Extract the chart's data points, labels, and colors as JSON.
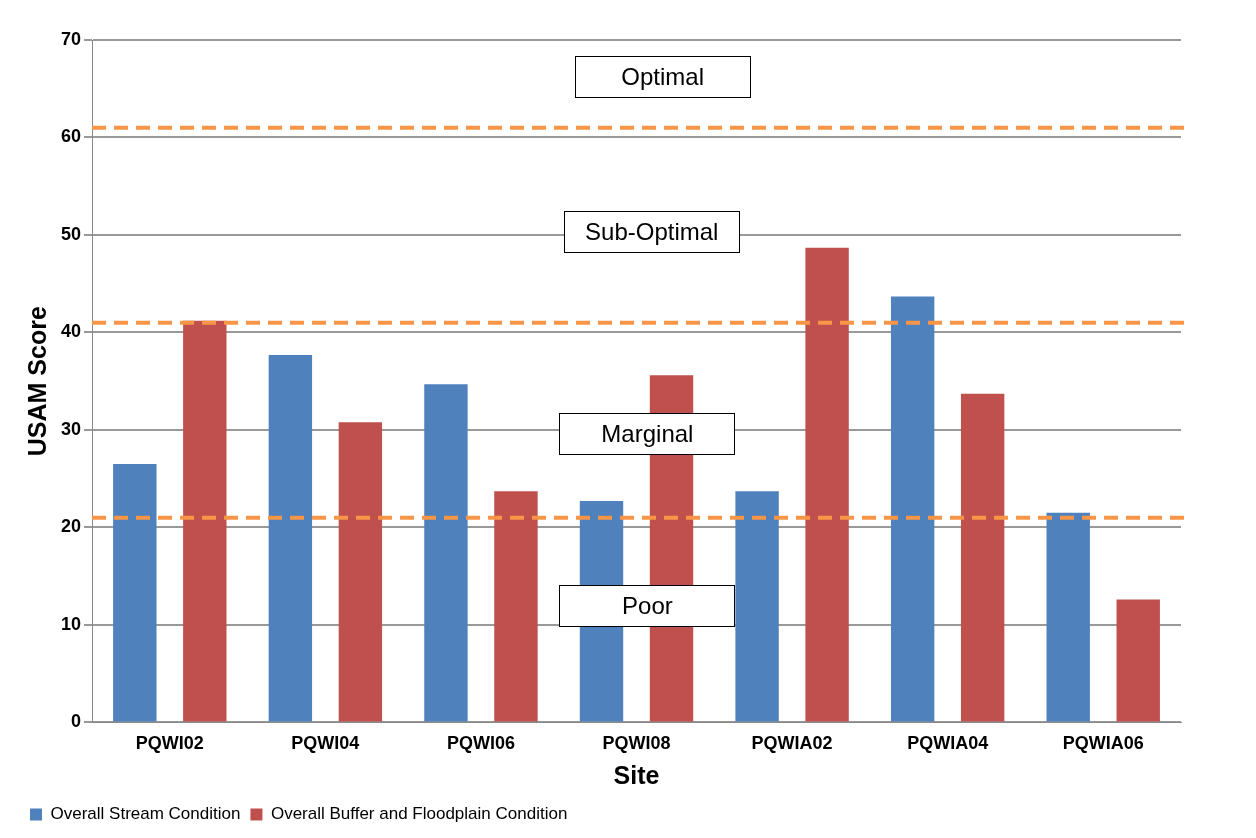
{
  "chart_data": {
    "type": "bar",
    "xlabel": "Site",
    "ylabel": "USAM Score",
    "categories": [
      "PQWI02",
      "PQWI04",
      "PQWI06",
      "PQWI08",
      "PQWIA02",
      "PQWIA04",
      "PQWIA06"
    ],
    "series": [
      {
        "name": "Overall Stream Condition",
        "color": "#4f81bd",
        "values": [
          26.5,
          37.7,
          34.7,
          22.7,
          23.7,
          43.7,
          21.5
        ]
      },
      {
        "name": "Overall Buffer and Floodplain Condition",
        "color": "#c0504d",
        "values": [
          41.2,
          30.8,
          23.7,
          35.6,
          48.7,
          33.7,
          12.6
        ]
      }
    ],
    "ylim": [
      0,
      70
    ],
    "yticks": [
      0,
      10,
      20,
      30,
      40,
      50,
      60,
      70
    ],
    "grid": "y",
    "legend": "bottom left",
    "ref_lines": [
      {
        "axis": "y",
        "value": 61,
        "color": "#f79646",
        "line_style": "dashed"
      },
      {
        "axis": "y",
        "value": 41,
        "color": "#f79646",
        "line_style": "dashed"
      },
      {
        "axis": "y",
        "value": 21,
        "color": "#f79646",
        "line_style": "dashed"
      }
    ],
    "annotations": [
      "Optimal",
      "Sub-Optimal",
      "Marginal",
      "Poor"
    ]
  }
}
